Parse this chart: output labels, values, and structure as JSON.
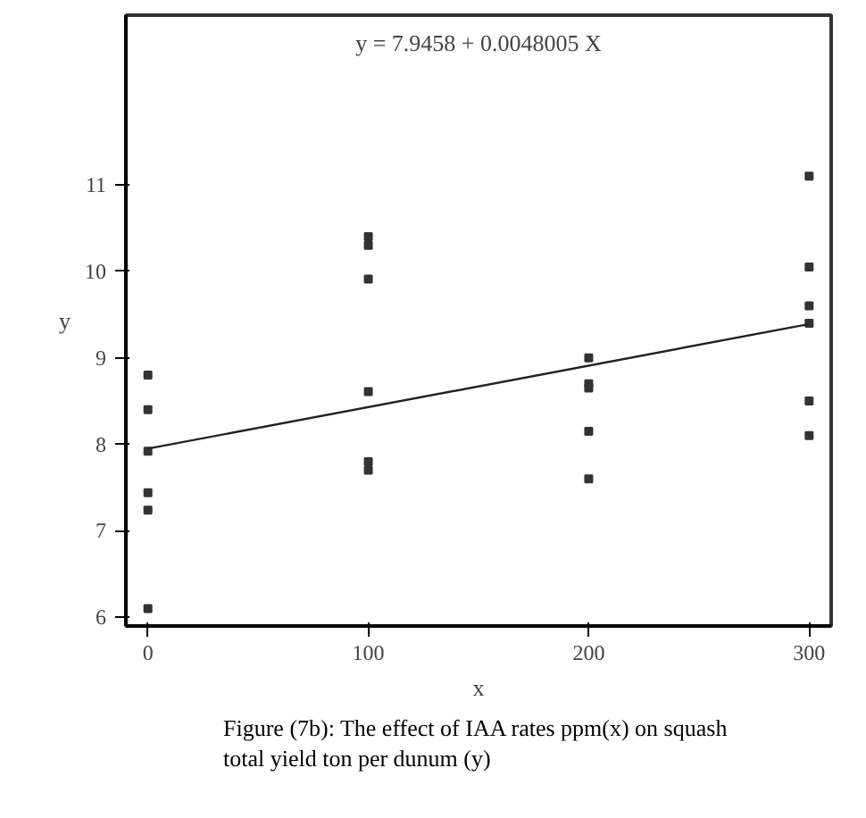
{
  "chart_data": {
    "type": "scatter",
    "xlabel": "x",
    "ylabel": "y",
    "annotations": [
      "y = 7.9458 + 0.0048005 X",
      "Figure (7b): The effect of IAA rates ppm(x) on squash total yield ton per dunum (y)"
    ],
    "series": [
      {
        "color": "#333333",
        "marker": "square",
        "x": [
          0,
          0,
          0,
          0,
          0,
          0,
          100,
          100,
          100,
          100,
          100,
          100,
          200,
          200,
          200,
          200,
          200,
          300,
          300,
          300,
          300,
          300,
          300
        ],
        "values": [
          8.8,
          8.4,
          7.92,
          7.44,
          7.24,
          6.1,
          10.4,
          10.3,
          9.91,
          8.61,
          7.8,
          7.7,
          9.0,
          8.7,
          8.65,
          8.15,
          7.6,
          11.1,
          10.05,
          9.6,
          9.4,
          8.5,
          8.1
        ]
      },
      {
        "type": "line",
        "color": "#222222",
        "x": [
          0,
          300
        ],
        "values": [
          7.95,
          9.39
        ]
      }
    ],
    "xlim": [
      -10,
      310
    ],
    "ylim": [
      5.9,
      12.96
    ],
    "xticks": [
      0,
      100,
      200,
      300
    ],
    "yticks": [
      6,
      7,
      8,
      9,
      10,
      11
    ],
    "grid": false,
    "line_style": "solid"
  }
}
